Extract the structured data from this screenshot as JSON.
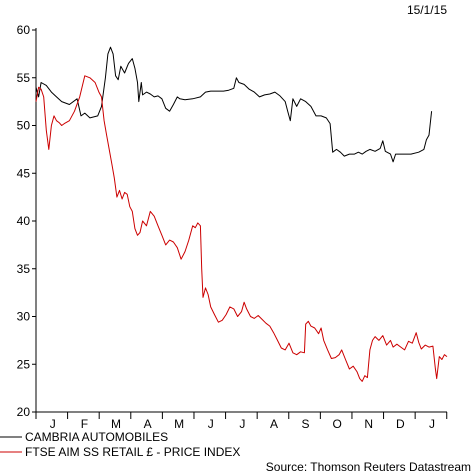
{
  "chart_data": {
    "type": "line",
    "date": "15/1/15",
    "source": "Source: Thomson Reuters Datastream",
    "ylim": [
      20,
      60
    ],
    "yticks": [
      20,
      25,
      30,
      35,
      40,
      45,
      50,
      55,
      60
    ],
    "grid": false,
    "legend_position": "bottom-left",
    "months": [
      "J",
      "F",
      "M",
      "A",
      "M",
      "J",
      "J",
      "A",
      "S",
      "O",
      "N",
      "D",
      "J"
    ],
    "series": [
      {
        "name": "CAMBRIA AUTOMOBILES",
        "color": "#000000",
        "points": [
          [
            0,
            54.0
          ],
          [
            0.1,
            53.0
          ],
          [
            0.2,
            54.5
          ],
          [
            0.4,
            54.2
          ],
          [
            0.6,
            53.5
          ],
          [
            0.8,
            53.0
          ],
          [
            1.0,
            52.5
          ],
          [
            1.3,
            52.2
          ],
          [
            1.6,
            52.8
          ],
          [
            1.75,
            51.0
          ],
          [
            1.9,
            51.3
          ],
          [
            2.1,
            50.8
          ],
          [
            2.4,
            51.0
          ],
          [
            2.55,
            52.0
          ],
          [
            2.7,
            55.0
          ],
          [
            2.8,
            57.5
          ],
          [
            2.9,
            58.2
          ],
          [
            3.0,
            57.5
          ],
          [
            3.1,
            55.2
          ],
          [
            3.2,
            54.8
          ],
          [
            3.3,
            56.2
          ],
          [
            3.45,
            55.5
          ],
          [
            3.6,
            56.5
          ],
          [
            3.75,
            57.0
          ],
          [
            3.85,
            56.0
          ],
          [
            3.95,
            54.5
          ],
          [
            4.0,
            52.5
          ],
          [
            4.1,
            54.5
          ],
          [
            4.15,
            53.2
          ],
          [
            4.3,
            53.5
          ],
          [
            4.45,
            53.3
          ],
          [
            4.6,
            53.0
          ],
          [
            4.75,
            53.1
          ],
          [
            4.9,
            52.8
          ],
          [
            5.05,
            51.8
          ],
          [
            5.2,
            51.5
          ],
          [
            5.35,
            52.2
          ],
          [
            5.5,
            53.0
          ],
          [
            5.6,
            52.8
          ],
          [
            5.8,
            52.7
          ],
          [
            6.1,
            52.8
          ],
          [
            6.4,
            53.0
          ],
          [
            6.6,
            53.5
          ],
          [
            6.8,
            53.6
          ],
          [
            7.0,
            53.6
          ],
          [
            7.3,
            53.6
          ],
          [
            7.5,
            53.7
          ],
          [
            7.7,
            53.9
          ],
          [
            7.8,
            55.0
          ],
          [
            7.9,
            54.5
          ],
          [
            8.1,
            54.3
          ],
          [
            8.3,
            53.8
          ],
          [
            8.5,
            53.5
          ],
          [
            8.7,
            53.0
          ],
          [
            8.9,
            53.2
          ],
          [
            9.1,
            53.3
          ],
          [
            9.3,
            53.5
          ],
          [
            9.5,
            53.1
          ],
          [
            9.7,
            52.5
          ],
          [
            9.8,
            51.5
          ],
          [
            9.9,
            50.5
          ],
          [
            10.0,
            52.8
          ],
          [
            10.15,
            52.0
          ],
          [
            10.3,
            52.8
          ],
          [
            10.5,
            52.5
          ],
          [
            10.7,
            52.0
          ],
          [
            10.9,
            51.0
          ],
          [
            11.1,
            51.0
          ],
          [
            11.3,
            50.8
          ],
          [
            11.45,
            50.2
          ],
          [
            11.55,
            47.2
          ],
          [
            11.7,
            47.5
          ],
          [
            11.85,
            47.2
          ],
          [
            12.0,
            46.8
          ],
          [
            12.2,
            47.0
          ],
          [
            12.4,
            47.0
          ],
          [
            12.55,
            47.2
          ],
          [
            12.7,
            47.0
          ],
          [
            12.85,
            47.3
          ],
          [
            13.0,
            47.5
          ],
          [
            13.2,
            47.3
          ],
          [
            13.4,
            47.6
          ],
          [
            13.5,
            48.4
          ],
          [
            13.6,
            47.3
          ],
          [
            13.8,
            47.0
          ],
          [
            13.9,
            46.2
          ],
          [
            14.0,
            47.0
          ],
          [
            14.3,
            47.0
          ],
          [
            14.6,
            47.0
          ],
          [
            14.9,
            47.2
          ],
          [
            15.1,
            47.5
          ],
          [
            15.2,
            48.5
          ],
          [
            15.3,
            49.0
          ],
          [
            15.4,
            51.5
          ]
        ]
      },
      {
        "name": "FTSE AIM SS RETAIL £ - PRICE INDEX",
        "color": "#cc0000",
        "points": [
          [
            0,
            52.5
          ],
          [
            0.1,
            54.0
          ],
          [
            0.2,
            53.8
          ],
          [
            0.3,
            53.0
          ],
          [
            0.4,
            49.5
          ],
          [
            0.5,
            47.5
          ],
          [
            0.6,
            50.0
          ],
          [
            0.7,
            51.0
          ],
          [
            0.8,
            50.5
          ],
          [
            0.9,
            50.3
          ],
          [
            1.0,
            50.0
          ],
          [
            1.1,
            50.2
          ],
          [
            1.3,
            50.5
          ],
          [
            1.5,
            51.5
          ],
          [
            1.7,
            53.0
          ],
          [
            1.9,
            55.2
          ],
          [
            2.1,
            55.0
          ],
          [
            2.3,
            54.5
          ],
          [
            2.45,
            53.5
          ],
          [
            2.55,
            53.0
          ],
          [
            2.65,
            50.5
          ],
          [
            2.75,
            49.0
          ],
          [
            2.85,
            47.5
          ],
          [
            2.95,
            46.0
          ],
          [
            3.05,
            44.5
          ],
          [
            3.15,
            42.5
          ],
          [
            3.25,
            43.2
          ],
          [
            3.35,
            42.3
          ],
          [
            3.45,
            43.0
          ],
          [
            3.55,
            42.8
          ],
          [
            3.65,
            41.5
          ],
          [
            3.75,
            41.0
          ],
          [
            3.85,
            39.2
          ],
          [
            3.95,
            38.5
          ],
          [
            4.05,
            38.8
          ],
          [
            4.15,
            40.0
          ],
          [
            4.3,
            39.5
          ],
          [
            4.45,
            41.0
          ],
          [
            4.6,
            40.5
          ],
          [
            4.75,
            39.5
          ],
          [
            4.9,
            38.5
          ],
          [
            5.05,
            37.5
          ],
          [
            5.2,
            38.0
          ],
          [
            5.35,
            37.8
          ],
          [
            5.5,
            37.2
          ],
          [
            5.65,
            36.0
          ],
          [
            5.8,
            36.8
          ],
          [
            5.95,
            38.0
          ],
          [
            6.1,
            39.5
          ],
          [
            6.2,
            39.3
          ],
          [
            6.3,
            39.8
          ],
          [
            6.4,
            39.5
          ],
          [
            6.45,
            35.0
          ],
          [
            6.5,
            32.0
          ],
          [
            6.6,
            33.0
          ],
          [
            6.7,
            32.3
          ],
          [
            6.8,
            31.0
          ],
          [
            6.95,
            30.2
          ],
          [
            7.1,
            29.4
          ],
          [
            7.25,
            29.6
          ],
          [
            7.4,
            30.2
          ],
          [
            7.55,
            31.0
          ],
          [
            7.7,
            30.8
          ],
          [
            7.85,
            30.0
          ],
          [
            8.0,
            30.5
          ],
          [
            8.1,
            31.5
          ],
          [
            8.2,
            30.8
          ],
          [
            8.35,
            30.0
          ],
          [
            8.5,
            29.8
          ],
          [
            8.65,
            30.1
          ],
          [
            8.8,
            29.7
          ],
          [
            8.95,
            29.3
          ],
          [
            9.1,
            29.0
          ],
          [
            9.25,
            28.3
          ],
          [
            9.4,
            27.5
          ],
          [
            9.55,
            26.7
          ],
          [
            9.7,
            26.5
          ],
          [
            9.85,
            27.2
          ],
          [
            10.0,
            26.2
          ],
          [
            10.15,
            26.0
          ],
          [
            10.3,
            26.3
          ],
          [
            10.45,
            26.2
          ],
          [
            10.5,
            29.2
          ],
          [
            10.6,
            29.5
          ],
          [
            10.7,
            29.0
          ],
          [
            10.85,
            28.8
          ],
          [
            11.0,
            28.2
          ],
          [
            11.1,
            28.8
          ],
          [
            11.2,
            27.5
          ],
          [
            11.35,
            26.5
          ],
          [
            11.5,
            25.6
          ],
          [
            11.65,
            25.7
          ],
          [
            11.8,
            26.0
          ],
          [
            11.9,
            26.5
          ],
          [
            12.05,
            25.5
          ],
          [
            12.2,
            24.5
          ],
          [
            12.35,
            24.8
          ],
          [
            12.5,
            24.2
          ],
          [
            12.6,
            23.5
          ],
          [
            12.7,
            23.2
          ],
          [
            12.8,
            23.8
          ],
          [
            12.9,
            23.6
          ],
          [
            13.0,
            26.5
          ],
          [
            13.1,
            27.5
          ],
          [
            13.2,
            27.9
          ],
          [
            13.35,
            27.5
          ],
          [
            13.5,
            28.0
          ],
          [
            13.65,
            27.0
          ],
          [
            13.8,
            27.5
          ],
          [
            13.9,
            26.8
          ],
          [
            14.05,
            27.1
          ],
          [
            14.2,
            26.8
          ],
          [
            14.35,
            26.5
          ],
          [
            14.5,
            27.4
          ],
          [
            14.65,
            27.2
          ],
          [
            14.8,
            28.3
          ],
          [
            14.9,
            27.3
          ],
          [
            15.0,
            26.6
          ],
          [
            15.15,
            27.0
          ],
          [
            15.3,
            26.8
          ],
          [
            15.45,
            26.9
          ],
          [
            15.55,
            24.5
          ],
          [
            15.6,
            23.5
          ],
          [
            15.7,
            25.8
          ],
          [
            15.8,
            25.5
          ],
          [
            15.9,
            26.0
          ],
          [
            16.0,
            25.8
          ]
        ]
      }
    ]
  }
}
